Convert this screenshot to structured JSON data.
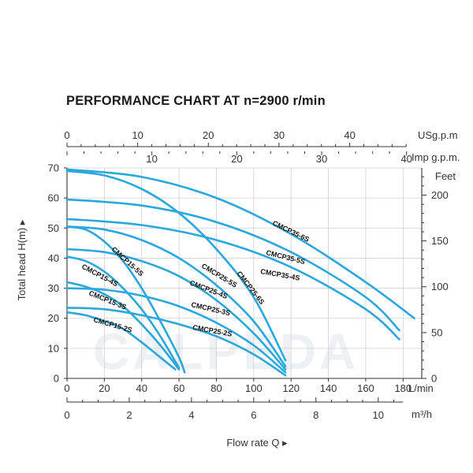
{
  "title": "PERFORMANCE CHART AT n=2900 r/min",
  "watermark": "CALPEDA",
  "chart_data": {
    "type": "line",
    "title": "PERFORMANCE CHART AT n=2900 r/min",
    "ylabel": "Total head H(m)",
    "xlabel": "Flow rate Q",
    "ylim": [
      0,
      70
    ],
    "xlim": [
      0,
      190
    ],
    "grid": true,
    "axes": {
      "left": {
        "unit": "",
        "ticks": [
          0,
          10,
          20,
          30,
          40,
          50,
          60,
          70
        ]
      },
      "right": {
        "unit": "Feet",
        "ticks": [
          0,
          50,
          100,
          150,
          200
        ]
      },
      "bottom_lmin": {
        "unit": "L/min",
        "ticks": [
          0,
          20,
          40,
          60,
          80,
          100,
          120,
          140,
          160,
          180
        ]
      },
      "bottom_m3h": {
        "unit": "m³/h",
        "ticks": [
          0,
          2,
          4,
          6,
          8,
          10
        ]
      },
      "top_usgpm": {
        "unit": "USg.p.m",
        "ticks": [
          0,
          10,
          20,
          30,
          40
        ]
      },
      "top_impgpm": {
        "unit": "Imp g.p.m.",
        "ticks": [
          10,
          20,
          30,
          40
        ]
      }
    },
    "series": [
      {
        "name": "CMCP15-2S",
        "x": [
          0,
          10,
          20,
          30,
          40,
          50,
          58
        ],
        "y": [
          22,
          21,
          19,
          16.5,
          12,
          7,
          3
        ]
      },
      {
        "name": "CMCP15-3S",
        "x": [
          0,
          10,
          20,
          30,
          40,
          50,
          60
        ],
        "y": [
          32,
          30.5,
          28,
          24,
          18,
          11,
          3
        ]
      },
      {
        "name": "CMCP15-4S",
        "x": [
          0,
          10,
          20,
          30,
          40,
          50,
          60
        ],
        "y": [
          40.5,
          39,
          35.5,
          30,
          23,
          14,
          3.5
        ]
      },
      {
        "name": "CMCP15-5S",
        "x": [
          0,
          10,
          20,
          30,
          40,
          50,
          60,
          63
        ],
        "y": [
          50.5,
          49.5,
          45.5,
          39,
          30,
          19,
          7,
          2
        ]
      },
      {
        "name": "CMCP25-2S",
        "x": [
          0,
          20,
          40,
          60,
          80,
          100,
          117
        ],
        "y": [
          23.5,
          23,
          21,
          18,
          14,
          8,
          1
        ]
      },
      {
        "name": "CMCP25-3S",
        "x": [
          0,
          20,
          40,
          60,
          80,
          100,
          117
        ],
        "y": [
          30,
          29.5,
          27.5,
          24,
          18.5,
          11,
          2
        ]
      },
      {
        "name": "CMCP25-4S",
        "x": [
          0,
          20,
          40,
          60,
          80,
          100,
          117
        ],
        "y": [
          43,
          42,
          39,
          34,
          26,
          15,
          3
        ]
      },
      {
        "name": "CMCP25-5S",
        "x": [
          0,
          20,
          40,
          60,
          80,
          100,
          117
        ],
        "y": [
          50.5,
          49.5,
          46,
          40,
          31,
          19,
          4
        ]
      },
      {
        "name": "CMCP25-6S",
        "x": [
          0,
          20,
          40,
          60,
          80,
          100,
          117
        ],
        "y": [
          69,
          67.5,
          63,
          55,
          43,
          27,
          6
        ]
      },
      {
        "name": "CMCP35-4S",
        "x": [
          0,
          40,
          80,
          120,
          160,
          178
        ],
        "y": [
          53,
          51,
          46,
          37,
          23,
          13
        ]
      },
      {
        "name": "CMCP35-5S",
        "x": [
          0,
          40,
          80,
          120,
          160,
          178
        ],
        "y": [
          59.5,
          57.5,
          52,
          42,
          27,
          16
        ]
      },
      {
        "name": "CMCP35-6S",
        "x": [
          0,
          40,
          80,
          120,
          160,
          186
        ],
        "y": [
          69.5,
          67,
          60,
          48,
          32,
          20
        ]
      }
    ]
  }
}
